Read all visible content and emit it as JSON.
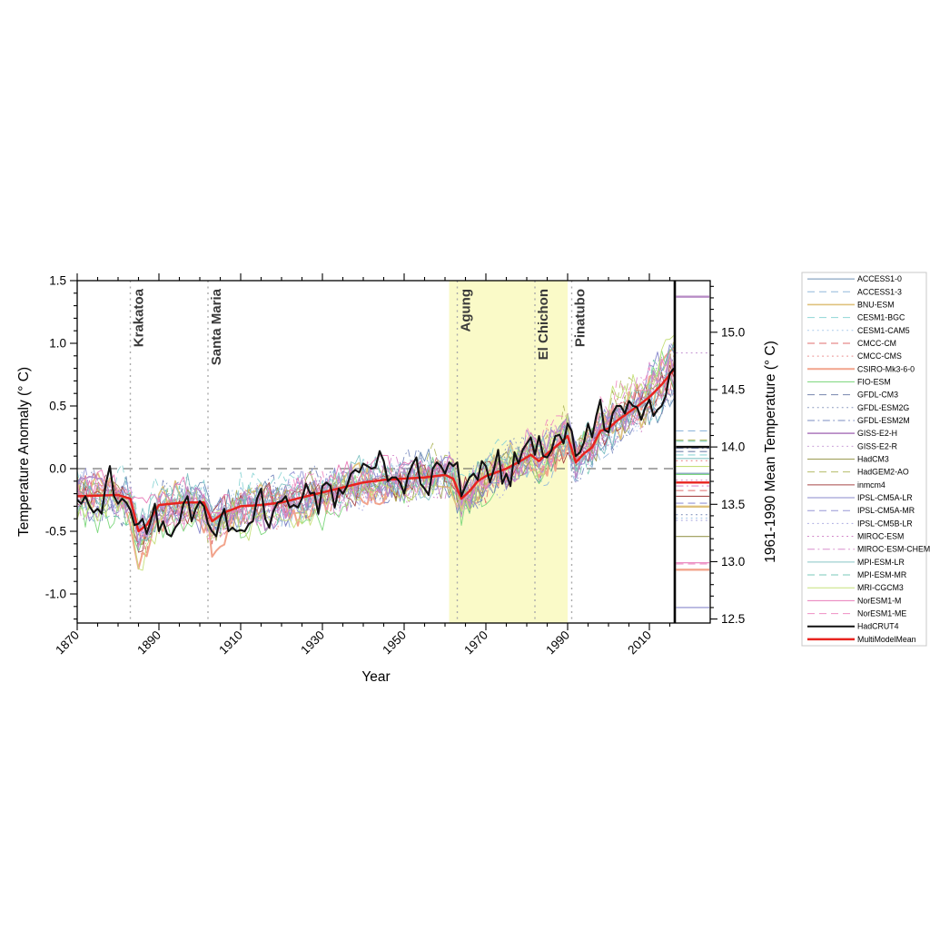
{
  "figure": {
    "xlabel": "Year",
    "ylabel_left": "Temperature Anomaly (° C)",
    "ylabel_right": "1961-1990 Mean Temperature (° C)"
  },
  "chart_data": {
    "type": "line",
    "title": "",
    "xlabel": "Year",
    "ylabel_left": "Temperature Anomaly (° C)",
    "ylabel_right": "1961-1990 Mean Temperature (° C)",
    "x_range": [
      1870,
      2016
    ],
    "ylim_left": [
      -1.23,
      1.5
    ],
    "ylim_right": [
      12.47,
      15.45
    ],
    "x_major_ticks": [
      1870,
      1890,
      1910,
      1930,
      1950,
      1970,
      1990,
      2010
    ],
    "x_minor_step": 5,
    "y_left_major_ticks": [
      "1.5",
      "1.0",
      "0.5",
      "0.0",
      "-0.5",
      "-1.0"
    ],
    "y_left_major_values": [
      1.5,
      1.0,
      0.5,
      0.0,
      -0.5,
      -1.0
    ],
    "y_left_minor_step": 0.1,
    "y_right_major_ticks": [
      "15.0",
      "14.5",
      "14.0",
      "13.5",
      "13.0",
      "12.5"
    ],
    "y_right_major_values": [
      15.0,
      14.5,
      14.0,
      13.5,
      13.0,
      12.5
    ],
    "y_right_minor_step": 0.1,
    "zero_line": 0.0,
    "baseline_band": {
      "start_year": 1961,
      "end_year": 1990,
      "color": "#fafac8"
    },
    "volcanoes": [
      {
        "name": "Krakatoa",
        "year": 1883
      },
      {
        "name": "Santa Maria",
        "year": 1902
      },
      {
        "name": "Agung",
        "year": 1963
      },
      {
        "name": "El Chichon",
        "year": 1982
      },
      {
        "name": "Pinatubo",
        "year": 1991
      }
    ],
    "colors": {
      "multi_model_mean": "#e8231e",
      "hadcrut4": "#111111",
      "volcano_line": "#aaaaaa",
      "volcano_text": "#3a3a3a",
      "zero_line": "#555555",
      "axis": "#000000",
      "legend_border": "#c8c8c8"
    },
    "series_meta": [
      {
        "name": "ACCESS1-0",
        "color": "#6e8fb5",
        "dash": "solid",
        "width": 0.9,
        "mean_temp_1961_1990": 13.77
      },
      {
        "name": "ACCESS1-3",
        "color": "#92b8dc",
        "dash": "dash",
        "width": 0.9,
        "mean_temp_1961_1990": 14.14
      },
      {
        "name": "BNU-ESM",
        "color": "#dfc27d",
        "dash": "solid",
        "width": 1.7,
        "mean_temp_1961_1990": 13.48
      },
      {
        "name": "CESM1-BGC",
        "color": "#8fd6d6",
        "dash": "dash",
        "width": 0.9,
        "mean_temp_1961_1990": 13.93
      },
      {
        "name": "CESM1-CAM5",
        "color": "#a6c8ea",
        "dash": "dot",
        "width": 0.9,
        "mean_temp_1961_1990": 13.38
      },
      {
        "name": "CMCC-CM",
        "color": "#e06c6c",
        "dash": "dash",
        "width": 0.9,
        "mean_temp_1961_1990": 13.62
      },
      {
        "name": "CMCC-CMS",
        "color": "#ea8a8a",
        "dash": "dot",
        "width": 0.9,
        "mean_temp_1961_1990": 13.88
      },
      {
        "name": "CSIRO-Mk3-6-0",
        "color": "#f2a48c",
        "dash": "solid",
        "width": 2.0,
        "mean_temp_1961_1990": 12.93
      },
      {
        "name": "FIO-ESM",
        "color": "#7fd87f",
        "dash": "solid",
        "width": 0.9,
        "mean_temp_1961_1990": 13.76
      },
      {
        "name": "GFDL-CM3",
        "color": "#7585ad",
        "dash": "dash",
        "width": 0.9,
        "mean_temp_1961_1990": 13.96
      },
      {
        "name": "GFDL-ESM2G",
        "color": "#8596bd",
        "dash": "dot",
        "width": 0.9,
        "mean_temp_1961_1990": 13.41
      },
      {
        "name": "GFDL-ESM2M",
        "color": "#7b8cc0",
        "dash": "dashdot",
        "width": 0.9,
        "mean_temp_1961_1990": 13.99
      },
      {
        "name": "GISS-E2-H",
        "color": "#b88cc6",
        "dash": "solid",
        "width": 1.7,
        "mean_temp_1961_1990": 15.31
      },
      {
        "name": "GISS-E2-R",
        "color": "#c79ad4",
        "dash": "dot",
        "width": 0.9,
        "mean_temp_1961_1990": 14.82
      },
      {
        "name": "HadCM3",
        "color": "#9a9a52",
        "dash": "solid",
        "width": 0.9,
        "mean_temp_1961_1990": 13.22
      },
      {
        "name": "HadGEM2-AO",
        "color": "#b5bd6a",
        "dash": "dash",
        "width": 0.9,
        "mean_temp_1961_1990": 14.06
      },
      {
        "name": "inmcm4",
        "color": "#a84848",
        "dash": "solid",
        "width": 0.9,
        "mean_temp_1961_1990": 13.57
      },
      {
        "name": "IPSL-CM5A-LR",
        "color": "#8888cc",
        "dash": "solid",
        "width": 0.9,
        "mean_temp_1961_1990": 12.6
      },
      {
        "name": "IPSL-CM5A-MR",
        "color": "#9595d6",
        "dash": "dash",
        "width": 0.9,
        "mean_temp_1961_1990": 13.51
      },
      {
        "name": "IPSL-CM5B-LR",
        "color": "#a8a8e0",
        "dash": "dot",
        "width": 0.9,
        "mean_temp_1961_1990": 13.36
      },
      {
        "name": "MIROC-ESM",
        "color": "#cf7ec4",
        "dash": "dot",
        "width": 0.9,
        "mean_temp_1961_1990": 13.71
      },
      {
        "name": "MIROC-ESM-CHEM",
        "color": "#d98fce",
        "dash": "dashdot",
        "width": 0.9,
        "mean_temp_1961_1990": 13.66
      },
      {
        "name": "MPI-ESM-LR",
        "color": "#86c5c5",
        "dash": "solid",
        "width": 0.9,
        "mean_temp_1961_1990": 13.9
      },
      {
        "name": "MPI-ESM-MR",
        "color": "#79c9b9",
        "dash": "dash",
        "width": 0.9,
        "mean_temp_1961_1990": 14.05
      },
      {
        "name": "MRI-CGCM3",
        "color": "#c6e07a",
        "dash": "solid",
        "width": 0.9,
        "mean_temp_1961_1990": 13.83
      },
      {
        "name": "NorESM1-M",
        "color": "#e87bb8",
        "dash": "solid",
        "width": 0.9,
        "mean_temp_1961_1990": 12.99
      },
      {
        "name": "NorESM1-ME",
        "color": "#ef8fc4",
        "dash": "dash",
        "width": 0.9,
        "mean_temp_1961_1990": 12.98
      },
      {
        "name": "HadCRUT4",
        "color": "#111111",
        "dash": "solid",
        "width": 2.1,
        "mean_temp_1961_1990": 14.0
      },
      {
        "name": "MultiModelMean",
        "color": "#e8231e",
        "dash": "solid",
        "width": 2.5,
        "mean_temp_1961_1990": 13.69
      }
    ],
    "multi_model_mean_keyframes": [
      [
        1870,
        -0.22
      ],
      [
        1880,
        -0.21
      ],
      [
        1883,
        -0.24
      ],
      [
        1885,
        -0.5
      ],
      [
        1887,
        -0.45
      ],
      [
        1890,
        -0.29
      ],
      [
        1896,
        -0.27
      ],
      [
        1901,
        -0.27
      ],
      [
        1903,
        -0.42
      ],
      [
        1906,
        -0.35
      ],
      [
        1910,
        -0.3
      ],
      [
        1915,
        -0.29
      ],
      [
        1920,
        -0.27
      ],
      [
        1925,
        -0.23
      ],
      [
        1930,
        -0.19
      ],
      [
        1935,
        -0.15
      ],
      [
        1940,
        -0.11
      ],
      [
        1945,
        -0.09
      ],
      [
        1950,
        -0.08
      ],
      [
        1955,
        -0.07
      ],
      [
        1960,
        -0.05
      ],
      [
        1962,
        -0.08
      ],
      [
        1964,
        -0.24
      ],
      [
        1966,
        -0.18
      ],
      [
        1968,
        -0.1
      ],
      [
        1970,
        -0.06
      ],
      [
        1975,
        0.0
      ],
      [
        1979,
        0.07
      ],
      [
        1981,
        0.11
      ],
      [
        1983,
        0.06
      ],
      [
        1985,
        0.12
      ],
      [
        1988,
        0.2
      ],
      [
        1990,
        0.26
      ],
      [
        1992,
        0.05
      ],
      [
        1994,
        0.12
      ],
      [
        1996,
        0.17
      ],
      [
        1998,
        0.3
      ],
      [
        2000,
        0.32
      ],
      [
        2002,
        0.38
      ],
      [
        2005,
        0.45
      ],
      [
        2008,
        0.52
      ],
      [
        2010,
        0.57
      ],
      [
        2013,
        0.67
      ],
      [
        2016,
        0.79
      ]
    ],
    "hadcrut4": {
      "start_year": 1870,
      "values": [
        -0.25,
        -0.28,
        -0.22,
        -0.3,
        -0.35,
        -0.32,
        -0.36,
        -0.12,
        0.02,
        -0.22,
        -0.28,
        -0.24,
        -0.27,
        -0.33,
        -0.45,
        -0.44,
        -0.4,
        -0.52,
        -0.42,
        -0.28,
        -0.5,
        -0.42,
        -0.52,
        -0.54,
        -0.47,
        -0.43,
        -0.28,
        -0.22,
        -0.42,
        -0.32,
        -0.26,
        -0.3,
        -0.44,
        -0.5,
        -0.54,
        -0.4,
        -0.32,
        -0.5,
        -0.47,
        -0.5,
        -0.49,
        -0.5,
        -0.44,
        -0.42,
        -0.24,
        -0.16,
        -0.4,
        -0.47,
        -0.34,
        -0.27,
        -0.26,
        -0.22,
        -0.31,
        -0.29,
        -0.31,
        -0.24,
        -0.12,
        -0.2,
        -0.19,
        -0.36,
        -0.14,
        -0.11,
        -0.14,
        -0.31,
        -0.16,
        -0.2,
        -0.14,
        -0.04,
        -0.01,
        -0.03,
        0.04,
        0.02,
        0.0,
        0.01,
        0.14,
        0.06,
        -0.1,
        -0.07,
        -0.07,
        -0.11,
        -0.2,
        -0.05,
        0.03,
        0.09,
        -0.12,
        -0.16,
        -0.21,
        0.0,
        0.05,
        0.02,
        -0.04,
        0.05,
        0.02,
        0.05,
        -0.22,
        -0.14,
        -0.07,
        -0.04,
        -0.09,
        0.06,
        0.02,
        -0.11,
        0.0,
        0.15,
        -0.12,
        -0.04,
        -0.14,
        0.13,
        0.04,
        0.15,
        0.2,
        0.25,
        0.11,
        0.26,
        0.1,
        0.09,
        0.14,
        0.26,
        0.27,
        0.2,
        0.36,
        0.3,
        0.1,
        0.13,
        0.21,
        0.36,
        0.25,
        0.42,
        0.55,
        0.31,
        0.29,
        0.44,
        0.5,
        0.5,
        0.44,
        0.54,
        0.5,
        0.49,
        0.39,
        0.49,
        0.55,
        0.42,
        0.47,
        0.5,
        0.58,
        0.76,
        0.8
      ]
    },
    "legend_position": "right"
  }
}
